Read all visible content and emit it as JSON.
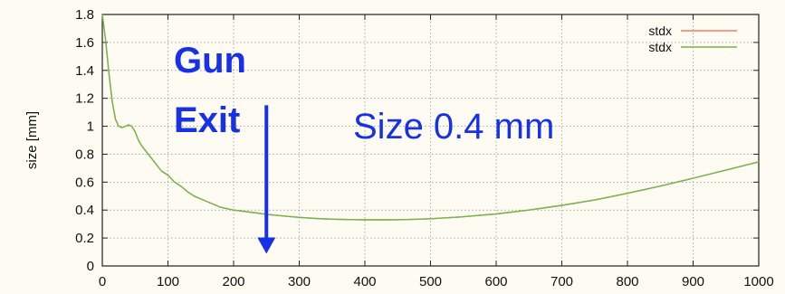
{
  "chart_data": {
    "type": "line",
    "title": "",
    "xlabel": "",
    "ylabel": "size [mm]",
    "xlim": [
      0,
      1000
    ],
    "ylim": [
      0,
      1.8
    ],
    "xticks": [
      "0",
      "100",
      "200",
      "300",
      "400",
      "500",
      "600",
      "700",
      "800",
      "900",
      "1000"
    ],
    "yticks": [
      "0",
      "0.2",
      "0.4",
      "0.6",
      "0.8",
      "1",
      "1.2",
      "1.4",
      "1.6",
      "1.8"
    ],
    "grid": true,
    "legend_position": "top-right",
    "series": [
      {
        "name": "stdx",
        "color": "#f08060",
        "x": [
          0,
          5,
          10,
          15,
          20,
          25,
          30,
          35,
          40,
          45,
          50,
          55,
          60,
          70,
          80,
          90,
          100,
          110,
          120,
          130,
          140,
          150,
          160,
          170,
          180,
          190,
          200,
          225,
          250,
          275,
          300,
          325,
          350,
          375,
          400,
          425,
          450,
          475,
          500,
          550,
          600,
          650,
          700,
          750,
          800,
          850,
          900,
          950,
          1000
        ],
        "y": [
          1.8,
          1.62,
          1.38,
          1.18,
          1.05,
          1.0,
          0.99,
          1.0,
          1.01,
          1.0,
          0.96,
          0.9,
          0.86,
          0.8,
          0.74,
          0.68,
          0.65,
          0.6,
          0.57,
          0.53,
          0.5,
          0.48,
          0.46,
          0.44,
          0.42,
          0.41,
          0.4,
          0.385,
          0.37,
          0.358,
          0.348,
          0.34,
          0.335,
          0.332,
          0.33,
          0.33,
          0.331,
          0.334,
          0.338,
          0.352,
          0.372,
          0.4,
          0.434,
          0.472,
          0.52,
          0.572,
          0.628,
          0.686,
          0.745
        ]
      },
      {
        "name": "stdx",
        "color": "#6fb84a",
        "x": [
          0,
          5,
          10,
          15,
          20,
          25,
          30,
          35,
          40,
          45,
          50,
          55,
          60,
          70,
          80,
          90,
          100,
          110,
          120,
          130,
          140,
          150,
          160,
          170,
          180,
          190,
          200,
          225,
          250,
          275,
          300,
          325,
          350,
          375,
          400,
          425,
          450,
          475,
          500,
          550,
          600,
          650,
          700,
          750,
          800,
          850,
          900,
          950,
          1000
        ],
        "y": [
          1.8,
          1.62,
          1.38,
          1.18,
          1.05,
          1.0,
          0.99,
          1.0,
          1.01,
          1.0,
          0.96,
          0.9,
          0.86,
          0.8,
          0.74,
          0.68,
          0.65,
          0.6,
          0.57,
          0.53,
          0.5,
          0.48,
          0.46,
          0.44,
          0.42,
          0.41,
          0.4,
          0.385,
          0.37,
          0.358,
          0.348,
          0.34,
          0.335,
          0.332,
          0.33,
          0.33,
          0.331,
          0.334,
          0.338,
          0.352,
          0.372,
          0.4,
          0.434,
          0.472,
          0.52,
          0.572,
          0.628,
          0.686,
          0.745
        ]
      }
    ],
    "annotations": {
      "gun": "Gun",
      "exit": "Exit",
      "size": "Size 0.4 mm",
      "arrow_x": 250,
      "arrow_y_from": 1.15,
      "arrow_y_to": 0.1,
      "color": "#1830e6"
    }
  }
}
